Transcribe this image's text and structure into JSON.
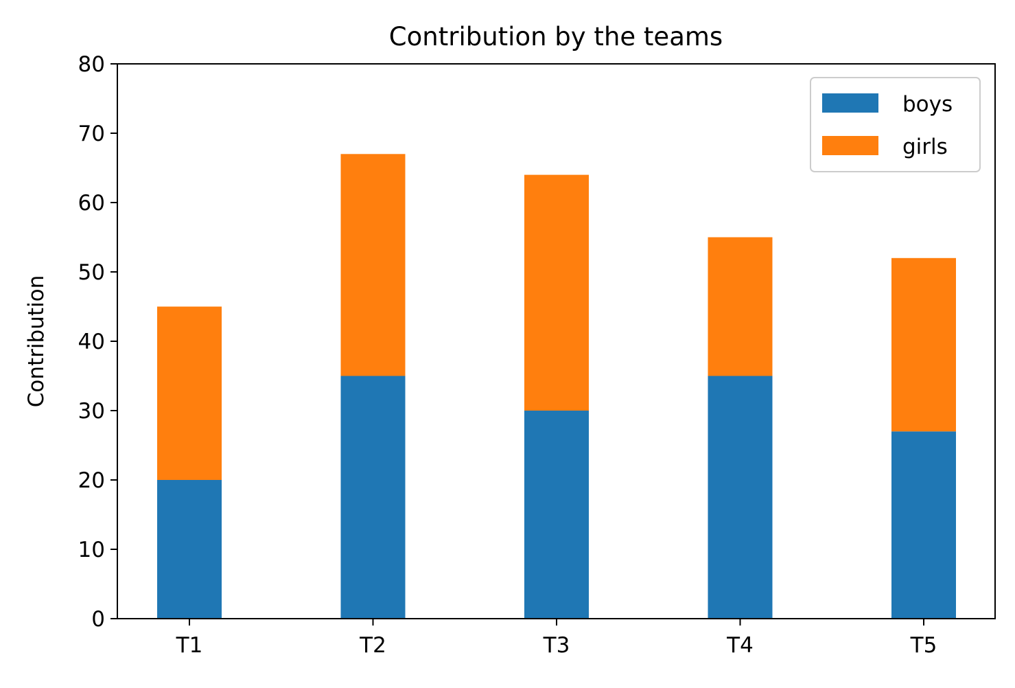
{
  "chart_data": {
    "type": "bar",
    "stacked": true,
    "title": "Contribution by the teams",
    "xlabel": "",
    "ylabel": "Contribution",
    "categories": [
      "T1",
      "T2",
      "T3",
      "T4",
      "T5"
    ],
    "series": [
      {
        "name": "boys",
        "values": [
          20,
          35,
          30,
          35,
          27
        ],
        "color": "#1f77b4"
      },
      {
        "name": "girls",
        "values": [
          25,
          32,
          34,
          20,
          25
        ],
        "color": "#ff7f0e"
      }
    ],
    "ylim": [
      0,
      80
    ],
    "yticks": [
      0,
      10,
      20,
      30,
      40,
      50,
      60,
      70,
      80
    ],
    "grid": false,
    "legend_position": "top-right"
  }
}
